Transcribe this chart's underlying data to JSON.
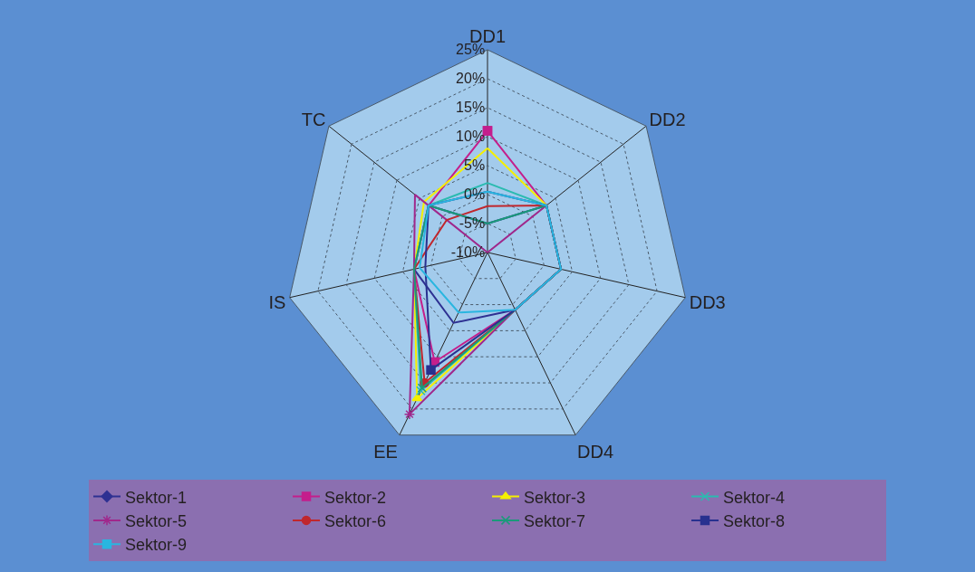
{
  "chart_data": {
    "type": "radar",
    "categories": [
      "DD1",
      "DD2",
      "DD3",
      "DD4",
      "EE",
      "IS",
      "TC"
    ],
    "ylim": [
      -10,
      25
    ],
    "yticks": [
      {
        "value": -10,
        "label": "-10%"
      },
      {
        "value": -5,
        "label": "-5%"
      },
      {
        "value": 0,
        "label": "0%"
      },
      {
        "value": 5,
        "label": "5%"
      },
      {
        "value": 10,
        "label": "10%"
      },
      {
        "value": 15,
        "label": "15%"
      },
      {
        "value": 20,
        "label": "20%"
      },
      {
        "value": 25,
        "label": "25%"
      }
    ],
    "grid": true,
    "legend": "bottom",
    "line_style": "solid",
    "series": [
      {
        "name": "Sektor-1",
        "color": "#2e3192",
        "marker": "diamond",
        "values": [
          -5,
          3,
          3,
          1,
          3.5,
          3,
          3
        ]
      },
      {
        "name": "Sektor-2",
        "color": "#c41e8c",
        "marker": "square",
        "values": [
          11,
          3,
          3,
          1,
          11,
          3,
          3
        ]
      },
      {
        "name": "Sektor-3",
        "color": "#f5f000",
        "marker": "triangle",
        "values": [
          8,
          3,
          3,
          1,
          18,
          3,
          4
        ]
      },
      {
        "name": "Sektor-4",
        "color": "#2bbbb0",
        "marker": "cross",
        "values": [
          2,
          3,
          3,
          1,
          16.5,
          3,
          3
        ]
      },
      {
        "name": "Sektor-5",
        "color": "#a0288c",
        "marker": "star",
        "values": [
          -10,
          3,
          3,
          1,
          21,
          3,
          6
        ]
      },
      {
        "name": "Sektor-6",
        "color": "#c0272d",
        "marker": "circle",
        "values": [
          -2,
          3,
          3,
          1,
          15,
          3,
          -1
        ]
      },
      {
        "name": "Sektor-7",
        "color": "#1a9a7a",
        "marker": "cross",
        "values": [
          -5,
          3,
          3,
          1,
          16,
          3,
          3
        ]
      },
      {
        "name": "Sektor-8",
        "color": "#28318f",
        "marker": "square",
        "values": [
          0.5,
          3,
          3,
          1,
          12.5,
          1,
          3
        ]
      },
      {
        "name": "Sektor-9",
        "color": "#29b6e0",
        "marker": "square",
        "values": [
          0.5,
          3,
          3,
          1,
          1.5,
          2,
          3
        ]
      }
    ]
  }
}
